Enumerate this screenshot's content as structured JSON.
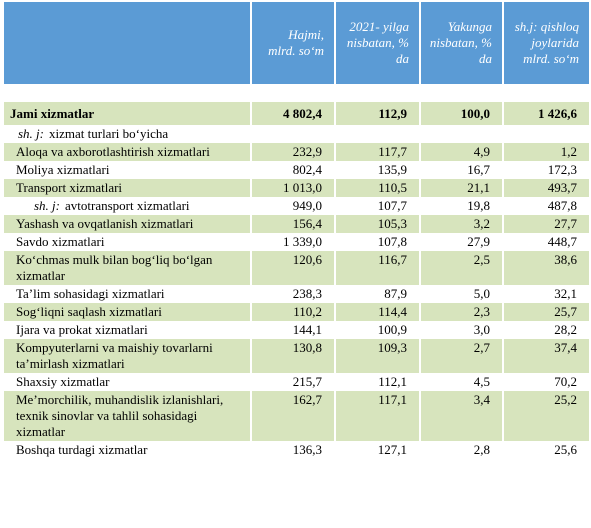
{
  "header": {
    "columns": [
      "Hajmi, mlrd. so‘m",
      "2021- yilga nisbatan, % da",
      "Yakunga nisbatan, % da",
      "sh.j: qishloq joylarida mlrd. so‘m"
    ]
  },
  "total": {
    "label": "Jami xizmatlar",
    "values": [
      "4 802,4",
      "112,9",
      "100,0",
      "1 426,6"
    ]
  },
  "section": {
    "prefix": "sh. j:",
    "label": "xizmat turlari bo‘yicha"
  },
  "rows": [
    {
      "label": "Aloqa va axborotlashtirish xizmatlari",
      "values": [
        "232,9",
        "117,7",
        "4,9",
        "1,2"
      ]
    },
    {
      "label": "Moliya xizmatlari",
      "values": [
        "802,4",
        "135,9",
        "16,7",
        "172,3"
      ]
    },
    {
      "label": "Transport xizmatlari",
      "values": [
        "1 013,0",
        "110,5",
        "21,1",
        "493,7"
      ]
    },
    {
      "prefix": "sh. j:",
      "label": "avtotransport xizmatlari",
      "values": [
        "949,0",
        "107,7",
        "19,8",
        "487,8"
      ]
    },
    {
      "label": "Yashash va ovqatlanish xizmatlari",
      "values": [
        "156,4",
        "105,3",
        "3,2",
        "27,7"
      ]
    },
    {
      "label": "Savdo xizmatlari",
      "values": [
        "1 339,0",
        "107,8",
        "27,9",
        "448,7"
      ]
    },
    {
      "label": "Ko‘chmas mulk bilan bog‘liq bo‘lgan xizmatlar",
      "values": [
        "120,6",
        "116,7",
        "2,5",
        "38,6"
      ]
    },
    {
      "label": "Ta’lim sohasidagi xizmatlari",
      "values": [
        "238,3",
        "87,9",
        "5,0",
        "32,1"
      ]
    },
    {
      "label": "Sog‘liqni saqlash xizmatlari",
      "values": [
        "110,2",
        "114,4",
        "2,3",
        "25,7"
      ]
    },
    {
      "label": "Ijara va prokat xizmatlari",
      "values": [
        "144,1",
        "100,9",
        "3,0",
        "28,2"
      ]
    },
    {
      "label": "Kompyuterlarni va maishiy tovarlarni ta’mirlash xizmatlari",
      "values": [
        "130,8",
        "109,3",
        "2,7",
        "37,4"
      ]
    },
    {
      "label": "Shaxsiy xizmatlar",
      "values": [
        "215,7",
        "112,1",
        "4,5",
        "70,2"
      ]
    },
    {
      "label": "Me’morchilik, muhandislik izlanishlari, texnik sinovlar va tahlil sohasidagi xizmatlar",
      "values": [
        "162,7",
        "117,1",
        "3,4",
        "25,2"
      ]
    },
    {
      "label": "Boshqa turdagi xizmatlar",
      "values": [
        "136,3",
        "127,1",
        "2,8",
        "25,6"
      ]
    }
  ]
}
